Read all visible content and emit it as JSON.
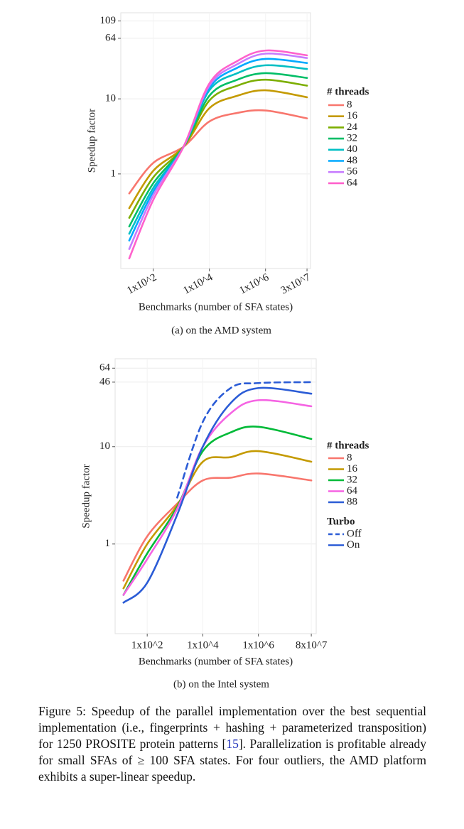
{
  "chart_data": [
    {
      "type": "line",
      "caption": "(a) on the AMD system",
      "x_label": "Benchmarks (number of SFA states)",
      "y_label": "Speedup factor",
      "xscale": "log",
      "yscale": "log",
      "grid": true,
      "x": [
        14,
        100,
        1200,
        10000,
        100000,
        1000000,
        30000000
      ],
      "xlim": [
        7,
        40000000
      ],
      "xticks": [
        {
          "value": 100,
          "label": "1x10^2"
        },
        {
          "value": 10000,
          "label": "1x10^4"
        },
        {
          "value": 1000000,
          "label": "1x10^6"
        },
        {
          "value": 30000000,
          "label": "3x10^7"
        }
      ],
      "ylim": [
        0.055,
        140
      ],
      "yticks": [
        1,
        10,
        64,
        109
      ],
      "legend_title": "# threads",
      "series": [
        {
          "name": "8",
          "color": "#f8766d",
          "values": [
            0.55,
            1.4,
            2.3,
            5,
            6.5,
            7,
            5.5
          ]
        },
        {
          "name": "16",
          "color": "#c49a00",
          "values": [
            0.35,
            1.1,
            2.3,
            7.5,
            11,
            13,
            10.5
          ]
        },
        {
          "name": "24",
          "color": "#7cae00",
          "values": [
            0.26,
            0.9,
            2.3,
            9.5,
            15,
            18,
            15
          ]
        },
        {
          "name": "32",
          "color": "#00be67",
          "values": [
            0.2,
            0.75,
            2.3,
            11,
            18,
            22,
            19
          ]
        },
        {
          "name": "40",
          "color": "#00bfc4",
          "values": [
            0.16,
            0.65,
            2.3,
            13,
            22,
            28,
            25
          ]
        },
        {
          "name": "48",
          "color": "#00a9ff",
          "values": [
            0.13,
            0.58,
            2.3,
            14,
            26,
            34,
            30
          ]
        },
        {
          "name": "56",
          "color": "#c77cff",
          "values": [
            0.1,
            0.52,
            2.3,
            15,
            29,
            40,
            35
          ]
        },
        {
          "name": "64",
          "color": "#ff61cc",
          "values": [
            0.075,
            0.45,
            2.3,
            16,
            32,
            44,
            38
          ]
        }
      ]
    },
    {
      "type": "line",
      "caption": "(b) on the Intel system",
      "x_label": "Benchmarks (number of SFA states)",
      "y_label": "Speedup factor",
      "xscale": "log",
      "yscale": "log",
      "grid": true,
      "x": [
        14,
        100,
        1200,
        10000,
        100000,
        1000000,
        80000000
      ],
      "xlim": [
        7,
        120000000
      ],
      "xticks": [
        {
          "value": 100,
          "label": "1x10^2"
        },
        {
          "value": 10000,
          "label": "1x10^4"
        },
        {
          "value": 1000000,
          "label": "1x10^6"
        },
        {
          "value": 80000000,
          "label": "8x10^7"
        }
      ],
      "ylim": [
        0.12,
        80
      ],
      "yticks": [
        1,
        10,
        46,
        64
      ],
      "legend_title": "# threads",
      "series": [
        {
          "name": "8",
          "color": "#f8766d",
          "values": [
            0.42,
            1.2,
            2.6,
            4.5,
            4.8,
            5.3,
            4.5
          ]
        },
        {
          "name": "16",
          "color": "#c49a00",
          "values": [
            0.35,
            1.0,
            2.5,
            7,
            7.8,
            9,
            7
          ]
        },
        {
          "name": "32",
          "color": "#00ba38",
          "values": [
            0.3,
            0.8,
            2.4,
            9,
            14,
            16,
            12
          ]
        },
        {
          "name": "64",
          "color": "#f564e3",
          "values": [
            0.3,
            0.7,
            2.3,
            10,
            22,
            30,
            26
          ]
        },
        {
          "name": "88",
          "color": "#2b5cd6",
          "values": [
            0.25,
            0.4,
            2,
            10,
            28,
            40,
            35
          ]
        }
      ],
      "turbo_legend": {
        "title": "Turbo",
        "labels": [
          "Off",
          "On"
        ],
        "dashed": [
          true,
          false
        ],
        "color": "#2b5cd6"
      },
      "turbo_off": {
        "values": [
          null,
          null,
          3,
          18,
          40,
          45,
          46
        ]
      }
    }
  ],
  "figure_caption": {
    "text_before": "Figure 5: Speedup of the parallel implementation over the best sequential implementation (i.e., fingerprints + hashing + parameterized transposition) for 1250 PROSITE protein patterns [",
    "ref": "15",
    "text_after": "]. Parallelization is profitable already for small SFAs of ≥ 100 SFA states. For four outliers, the AMD platform exhibits a super-linear speedup."
  }
}
